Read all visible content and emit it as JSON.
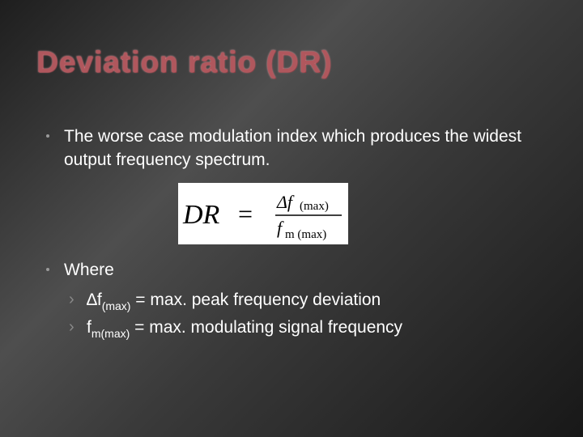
{
  "title": "Deviation ratio (DR)",
  "bullets": [
    {
      "text": "The worse case modulation index which produces the widest output frequency spectrum."
    },
    {
      "text": "Where"
    }
  ],
  "formula": {
    "lhs": "DR",
    "equals": "=",
    "numerator": "Δf",
    "numerator_sub": "(max)",
    "denominator": "f",
    "denominator_sub": "m (max)"
  },
  "sub_items": [
    {
      "prefix": "∆f",
      "subscript": "(max)",
      "rest": " = max. peak frequency deviation"
    },
    {
      "prefix": "f",
      "subscript": "m(max)",
      "rest": " = max. modulating signal frequency"
    }
  ],
  "icons": {
    "bullet": "dot-bullet-icon",
    "sub_bullet": "chevron-right-icon"
  }
}
